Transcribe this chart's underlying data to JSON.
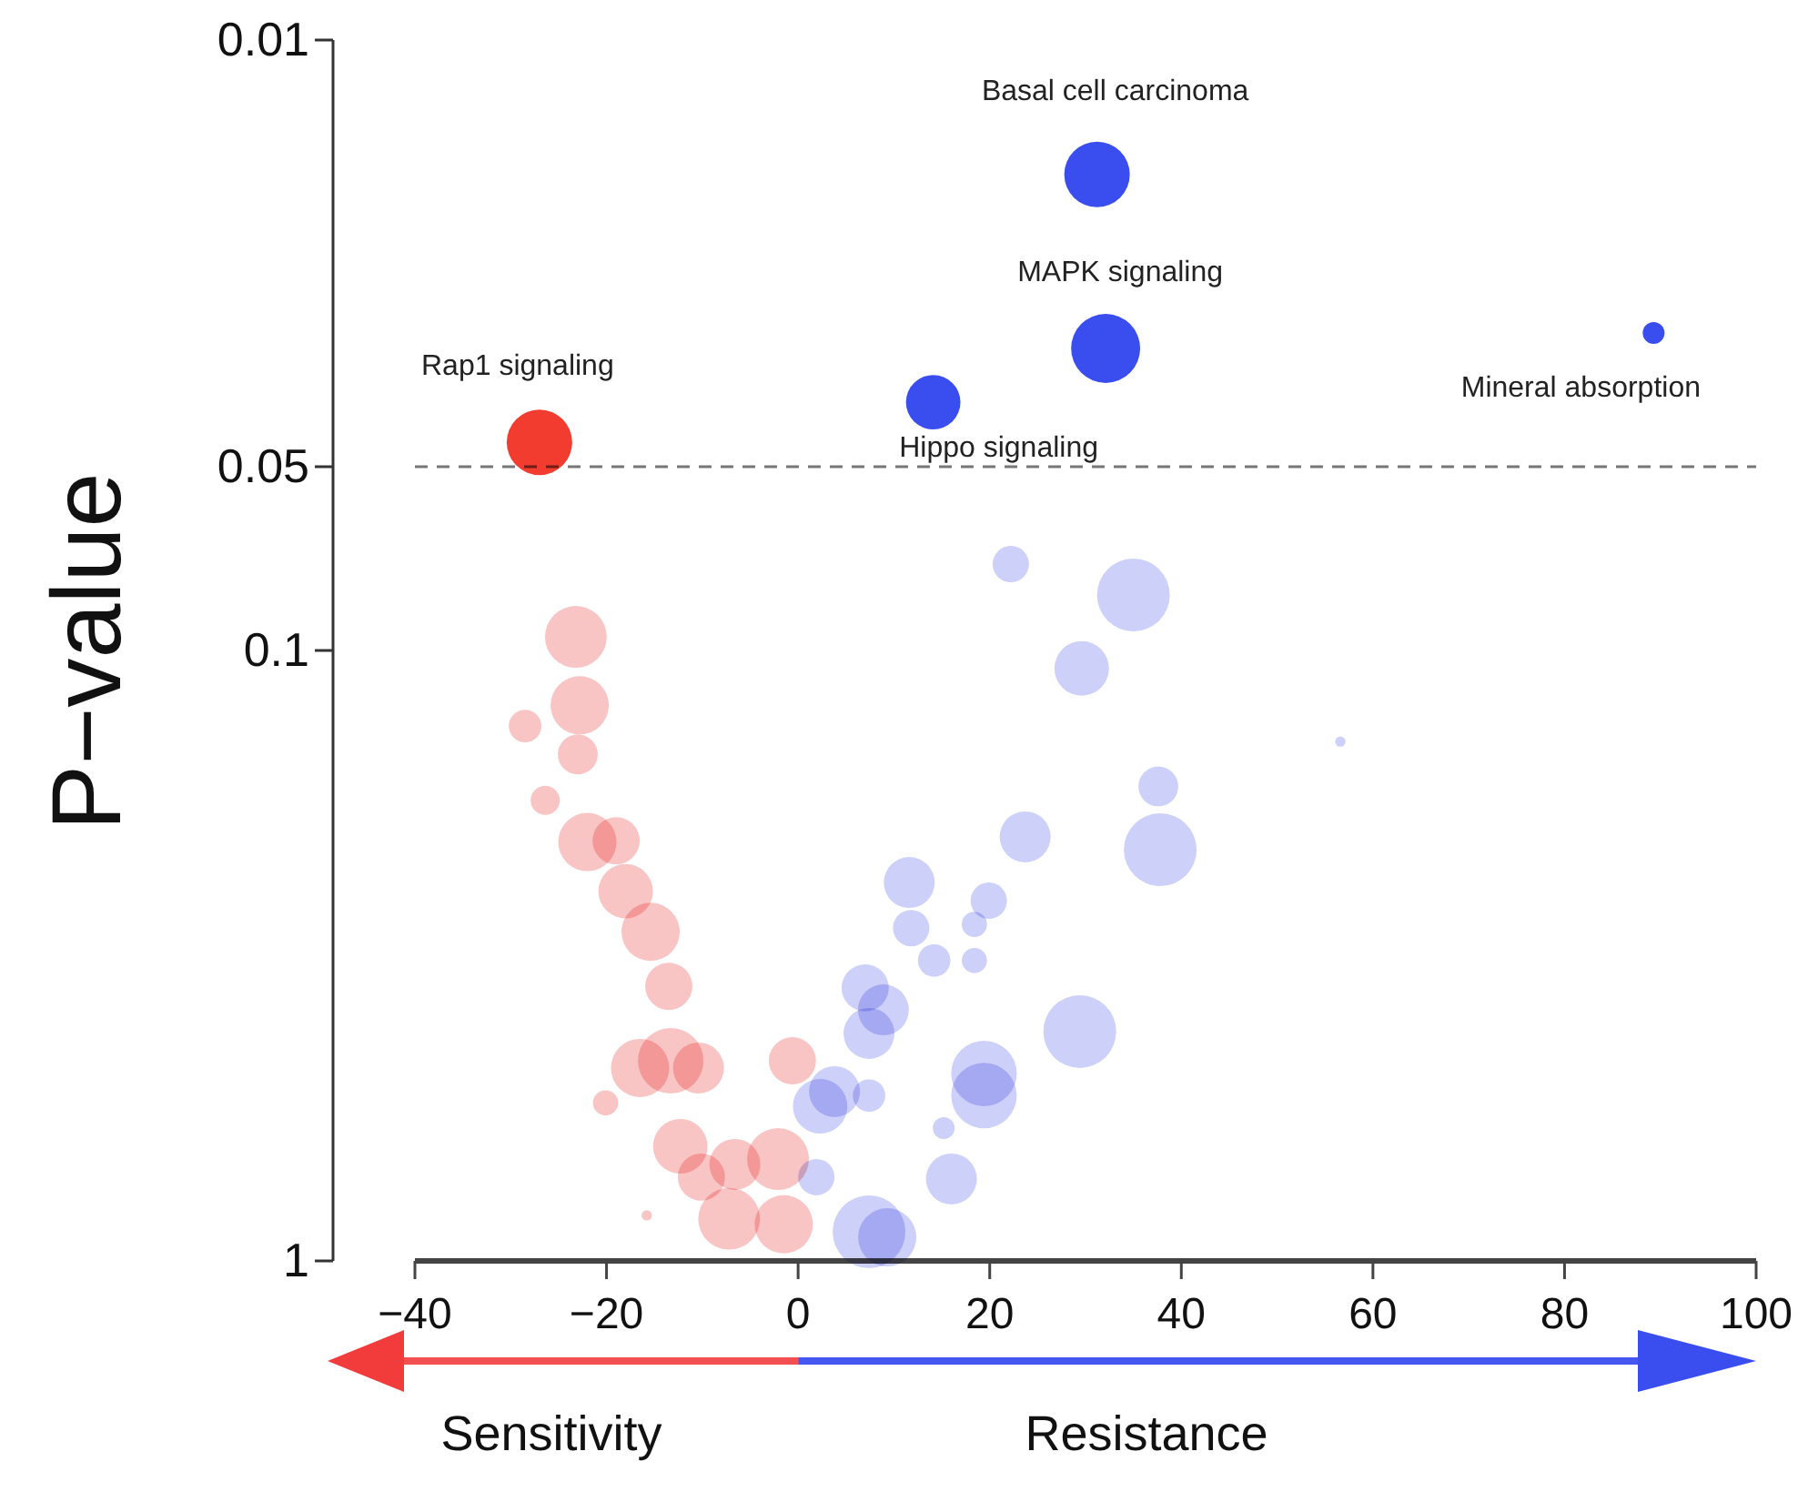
{
  "chart_data": {
    "type": "bubble",
    "ylabel": "P−value",
    "log": "y",
    "xlim": [
      -40,
      100
    ],
    "xticks": [
      -40,
      -20,
      0,
      20,
      40,
      60,
      80,
      100
    ],
    "ylim": [
      1,
      0.01
    ],
    "yticks": [
      1,
      0.1,
      0.05,
      0.01
    ],
    "ref_lines": [
      {
        "axis": "y",
        "value": 0.05,
        "line_style": "dashed",
        "color": "#777777"
      }
    ],
    "series": [
      {
        "color": "#f9c4c4",
        "x": [
          -23.2,
          -22.8,
          -28.5,
          -23.0,
          -26.4,
          -22.0,
          -19.0,
          -18.0,
          -15.4,
          -13.5,
          -13.3,
          -16.5,
          -10.4,
          -20.1,
          -12.3,
          -10.1,
          -6.6,
          -2.1,
          -7.2,
          -1.5,
          -15.8,
          -0.6
        ],
        "values": [
          0.095,
          0.123,
          0.133,
          0.148,
          0.176,
          0.206,
          0.205,
          0.248,
          0.289,
          0.355,
          0.47,
          0.483,
          0.483,
          0.551,
          0.649,
          0.729,
          0.695,
          0.681,
          0.853,
          0.871,
          0.842,
          0.47
        ],
        "sizes": [
          0.72,
          0.64,
          0.2,
          0.3,
          0.16,
          0.64,
          0.42,
          0.56,
          0.64,
          0.42,
          0.81,
          0.64,
          0.49,
          0.12,
          0.56,
          0.42,
          0.49,
          0.72,
          0.72,
          0.64,
          0.02,
          0.42
        ]
      },
      {
        "color": "#cdd0f8",
        "x": [
          22.2,
          35.0,
          29.6,
          37.6,
          37.8,
          23.7,
          11.6,
          19.9,
          11.8,
          18.4,
          14.2,
          18.4,
          7.0,
          8.9,
          7.4,
          29.4,
          19.4,
          19.4,
          3.8,
          2.3,
          7.4,
          15.2,
          16.0,
          1.9,
          7.4,
          9.3,
          56.6
        ],
        "values": [
          0.0722,
          0.0811,
          0.107,
          0.167,
          0.212,
          0.202,
          0.24,
          0.257,
          0.285,
          0.281,
          0.322,
          0.322,
          0.357,
          0.388,
          0.424,
          0.421,
          0.493,
          0.536,
          0.528,
          0.558,
          0.536,
          0.606,
          0.734,
          0.729,
          0.896,
          0.915,
          0.141
        ],
        "sizes": [
          0.25,
          1,
          0.56,
          0.3,
          1,
          0.49,
          0.49,
          0.25,
          0.25,
          0.12,
          0.2,
          0.12,
          0.42,
          0.49,
          0.49,
          1,
          0.81,
          0.81,
          0.49,
          0.56,
          0.2,
          0.09,
          0.49,
          0.25,
          1,
          0.64,
          0.02
        ]
      },
      {
        "color": "#f23c30",
        "x": [
          -27.0
        ],
        "values": [
          0.0456
        ],
        "sizes": [
          0.81
        ]
      },
      {
        "color": "#3a4ef0",
        "x": [
          31.2,
          32.1,
          14.1,
          89.3
        ],
        "values": [
          0.0166,
          0.032,
          0.0392,
          0.0302
        ],
        "sizes": [
          0.81,
          0.9,
          0.56,
          0.09
        ]
      }
    ],
    "annotations": [
      {
        "text": "Basal cell carcinoma",
        "x": 31.2,
        "y": 0.0166
      },
      {
        "text": "MAPK signaling",
        "x": 32.1,
        "y": 0.032
      },
      {
        "text": "Rap1 signaling",
        "x": -27.0,
        "y": 0.0456
      },
      {
        "text": "Hippo signaling",
        "x": 14.1,
        "y": 0.0392
      },
      {
        "text": "Mineral absorption",
        "x": 89.3,
        "y": 0.0302
      },
      "Sensitivity",
      "Resistance"
    ]
  }
}
